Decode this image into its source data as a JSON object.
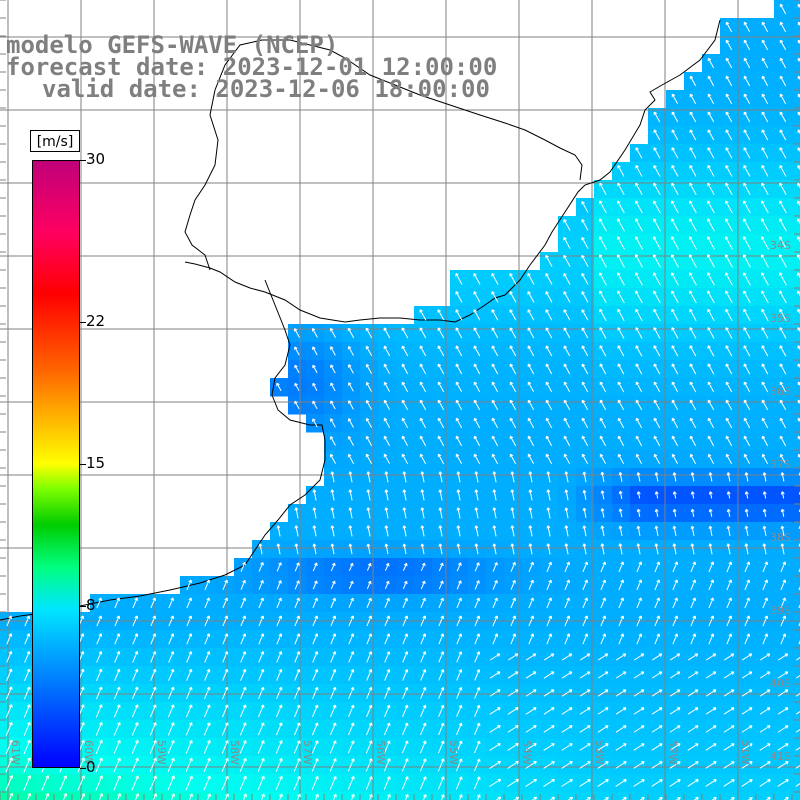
{
  "title": {
    "line1": "modelo GEFS-WAVE (NCEP)",
    "line2": "forecast date: 2023-12-01 12:00:00",
    "line3": "valid date: 2023-12-06 18:00:00"
  },
  "colorbar": {
    "unit": "[m/s]",
    "ticks": [
      {
        "label": "30",
        "value": 30
      },
      {
        "label": "22",
        "value": 22
      },
      {
        "label": "15",
        "value": 15
      },
      {
        "label": "8",
        "value": 8
      },
      {
        "label": "0",
        "value": 0
      }
    ]
  },
  "map": {
    "lon_labels": [
      "61W",
      "60W",
      "59W",
      "58W",
      "57W",
      "56W",
      "55W",
      "54W",
      "53W",
      "52W",
      "51W"
    ],
    "lat_labels": [
      "34S",
      "35S",
      "36S",
      "37S",
      "38S",
      "39S",
      "40S",
      "41S"
    ],
    "colors": {
      "land": "#ffffff",
      "coast": "#000000",
      "grid": "#808080",
      "arrow": "#ffffff"
    }
  }
}
